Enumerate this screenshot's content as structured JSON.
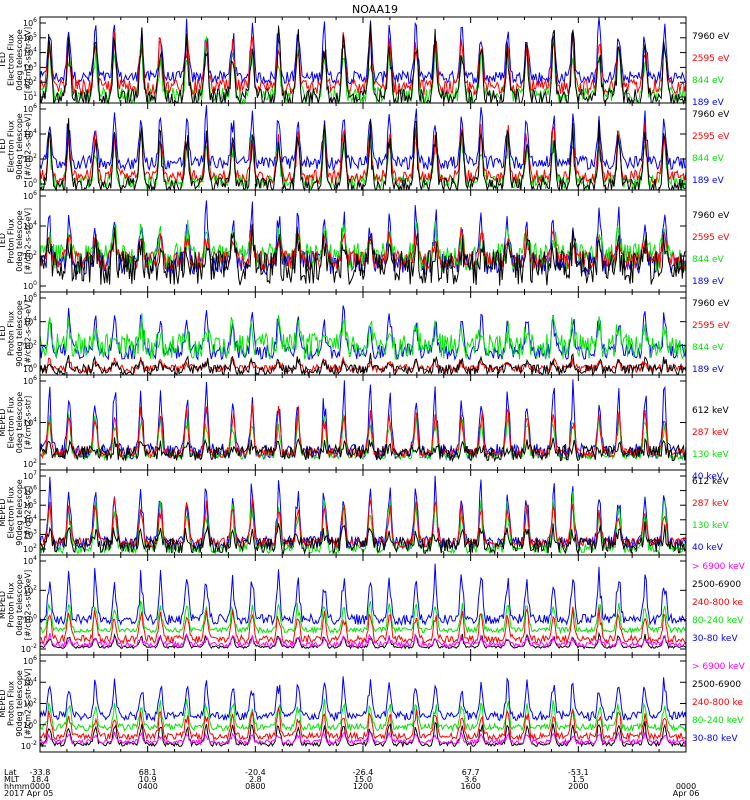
{
  "title": "NOAA19",
  "colors": {
    "black": "#000000",
    "blue": "#0000ff",
    "green": "#00e600",
    "red": "#ff0000",
    "magenta": "#ff00ff"
  },
  "chart_data": [
    {
      "type": "line",
      "panel": "ted-electron-0",
      "ylabel": [
        "TED",
        "Electron Flux",
        "0deg telescope",
        "[#/cm2-s-str-eV]"
      ],
      "yticks": [
        {
          "label": "10",
          "exp": "1"
        },
        {
          "label": "10",
          "exp": "2"
        },
        {
          "label": "10",
          "exp": "3"
        },
        {
          "label": "10",
          "exp": "4"
        },
        {
          "label": "10",
          "exp": "5"
        },
        {
          "label": "10",
          "exp": "6"
        }
      ],
      "ylim_log10": [
        0.6,
        6
      ],
      "grid": false,
      "legend": "right",
      "series": [
        {
          "name": "7960 eV",
          "color": "black",
          "baseline": 0.9,
          "peak": 5.5,
          "noise": 0.6
        },
        {
          "name": "2595 eV",
          "color": "red",
          "baseline": 1.6,
          "peak": 5.0,
          "noise": 0.5
        },
        {
          "name": "844 eV",
          "color": "green",
          "baseline": 1.1,
          "peak": 4.6,
          "noise": 0.5
        },
        {
          "name": "189 eV",
          "color": "blue",
          "baseline": 2.2,
          "peak": 5.9,
          "noise": 0.4
        }
      ]
    },
    {
      "type": "line",
      "panel": "ted-electron-90",
      "ylabel": [
        "TED",
        "Electron Flux",
        "90deg telescope",
        "[#/cm2-s-str-eV]"
      ],
      "yticks": [
        {
          "label": "10",
          "exp": "0"
        },
        {
          "label": "10",
          "exp": "2"
        },
        {
          "label": "10",
          "exp": "4"
        },
        {
          "label": "10",
          "exp": "6"
        }
      ],
      "ylim_log10": [
        -0.2,
        6.2
      ],
      "grid": false,
      "legend": "right",
      "series": [
        {
          "name": "7960 eV",
          "color": "black",
          "baseline": 0.1,
          "peak": 4.9,
          "noise": 0.6
        },
        {
          "name": "2595 eV",
          "color": "red",
          "baseline": 0.8,
          "peak": 4.6,
          "noise": 0.5
        },
        {
          "name": "844 eV",
          "color": "green",
          "baseline": 0.4,
          "peak": 4.2,
          "noise": 0.5
        },
        {
          "name": "189 eV",
          "color": "blue",
          "baseline": 1.8,
          "peak": 5.8,
          "noise": 0.5
        }
      ]
    },
    {
      "type": "line",
      "panel": "ted-proton-0",
      "ylabel": [
        "TED",
        "Proton Flux",
        "0deg telescope",
        "[#/cm2-s-str-eV]"
      ],
      "yticks": [
        {
          "label": "10",
          "exp": "0"
        },
        {
          "label": "10",
          "exp": "2"
        },
        {
          "label": "10",
          "exp": "4"
        },
        {
          "label": "10",
          "exp": "6"
        }
      ],
      "ylim_log10": [
        -0.2,
        6.2
      ],
      "grid": false,
      "legend": "right",
      "series": [
        {
          "name": "7960 eV",
          "color": "black",
          "baseline": 1.3,
          "peak": 3.5,
          "noise": 1.1
        },
        {
          "name": "2595 eV",
          "color": "red",
          "baseline": 1.8,
          "peak": 3.7,
          "noise": 0.6
        },
        {
          "name": "844 eV",
          "color": "green",
          "baseline": 2.0,
          "peak": 4.0,
          "noise": 0.9
        },
        {
          "name": "189 eV",
          "color": "blue",
          "baseline": 1.6,
          "peak": 5.2,
          "noise": 0.7
        }
      ]
    },
    {
      "type": "line",
      "panel": "ted-proton-90",
      "ylabel": [
        "TED",
        "Proton Flux",
        "90deg telescope",
        "[#/cm2-s-str-eV]"
      ],
      "yticks": [
        {
          "label": "10",
          "exp": "0"
        },
        {
          "label": "10",
          "exp": "2"
        },
        {
          "label": "10",
          "exp": "4"
        },
        {
          "label": "10",
          "exp": "6"
        }
      ],
      "ylim_log10": [
        -0.2,
        6.2
      ],
      "grid": false,
      "legend": "right",
      "series": [
        {
          "name": "7960 eV",
          "color": "black",
          "baseline": 0.2,
          "peak": 1.2,
          "noise": 0.4
        },
        {
          "name": "2595 eV",
          "color": "red",
          "baseline": 0.3,
          "peak": 1.0,
          "noise": 0.3
        },
        {
          "name": "844 eV",
          "color": "green",
          "baseline": 2.0,
          "peak": 3.9,
          "noise": 1.0
        },
        {
          "name": "189 eV",
          "color": "blue",
          "baseline": 1.6,
          "peak": 4.8,
          "noise": 0.6
        }
      ]
    },
    {
      "type": "line",
      "panel": "meped-electron-0",
      "ylabel": [
        "MEPED",
        "Electron Flux",
        "0deg telescope",
        "[#/cm2-s-str]"
      ],
      "yticks": [
        {
          "label": "10",
          "exp": "2"
        },
        {
          "label": "10",
          "exp": "4"
        },
        {
          "label": "10",
          "exp": "6"
        }
      ],
      "ylim_log10": [
        1.2,
        7.3
      ],
      "grid": false,
      "legend": "right",
      "series": [
        {
          "name": "612 keV",
          "color": "black",
          "baseline": 2.3,
          "peak": 2.9,
          "noise": 0.5
        },
        {
          "name": "287 keV",
          "color": "red",
          "baseline": 2.3,
          "peak": 5.5,
          "noise": 0.3
        },
        {
          "name": "130 keV",
          "color": "green",
          "baseline": 2.1,
          "peak": 5.0,
          "noise": 0.2
        },
        {
          "name": "40 keV",
          "color": "blue",
          "baseline": 2.4,
          "peak": 6.9,
          "noise": 0.5
        }
      ]
    },
    {
      "type": "line",
      "panel": "meped-electron-90",
      "ylabel": [
        "MEPED",
        "Electron Flux",
        "90deg telescope",
        "[#/cm2-s-str]"
      ],
      "yticks": [
        {
          "label": "10",
          "exp": "2"
        },
        {
          "label": "10",
          "exp": "3"
        },
        {
          "label": "10",
          "exp": "4"
        },
        {
          "label": "10",
          "exp": "5"
        },
        {
          "label": "10",
          "exp": "6"
        },
        {
          "label": "10",
          "exp": "7"
        }
      ],
      "ylim_log10": [
        1.8,
        7.2
      ],
      "grid": false,
      "legend": "right",
      "series": [
        {
          "name": "612 keV",
          "color": "black",
          "baseline": 2.4,
          "peak": 3.6,
          "noise": 0.5
        },
        {
          "name": "287 keV",
          "color": "red",
          "baseline": 2.6,
          "peak": 5.4,
          "noise": 0.3
        },
        {
          "name": "130 keV",
          "color": "green",
          "baseline": 2.2,
          "peak": 5.6,
          "noise": 0.3
        },
        {
          "name": "40 keV",
          "color": "blue",
          "baseline": 2.6,
          "peak": 6.7,
          "noise": 0.4
        }
      ]
    },
    {
      "type": "line",
      "panel": "meped-proton-0",
      "ylabel": [
        "MEPED",
        "Proton Flux",
        "0deg telescope",
        "[#/cm2-s-str-keV]"
      ],
      "yticks": [
        {
          "label": "10",
          "exp": "-2"
        },
        {
          "label": "10",
          "exp": "0"
        },
        {
          "label": "10",
          "exp": "2"
        },
        {
          "label": "10",
          "exp": "4"
        }
      ],
      "ylim_log10": [
        -2.4,
        5.2
      ],
      "grid": false,
      "legend": "right",
      "series": [
        {
          "name": "> 6900 keV",
          "color": "magenta",
          "baseline": -1.6,
          "peak": -0.9,
          "noise": 0.2
        },
        {
          "name": "2500-6900",
          "color": "black",
          "baseline": -1.8,
          "peak": -0.8,
          "noise": 0.1
        },
        {
          "name": "240-800 ke",
          "color": "red",
          "baseline": -1.2,
          "peak": 1.3,
          "noise": 0.3
        },
        {
          "name": "80-240 keV",
          "color": "green",
          "baseline": -0.5,
          "peak": 1.9,
          "noise": 0.2
        },
        {
          "name": "30-80 keV",
          "color": "blue",
          "baseline": 0.3,
          "peak": 4.2,
          "noise": 0.4
        }
      ]
    },
    {
      "type": "line",
      "panel": "meped-proton-90",
      "ylabel": [
        "MEPED",
        "Proton Flux",
        "90deg telescope",
        "[#/cm2-s-str-keV]"
      ],
      "yticks": [
        {
          "label": "10",
          "exp": "-2"
        },
        {
          "label": "10",
          "exp": "0"
        },
        {
          "label": "10",
          "exp": "2"
        },
        {
          "label": "10",
          "exp": "4"
        },
        {
          "label": "10",
          "exp": "6"
        }
      ],
      "ylim_log10": [
        -2.4,
        6.2
      ],
      "grid": false,
      "legend": "right",
      "series": [
        {
          "name": "> 6900 keV",
          "color": "magenta",
          "baseline": -1.5,
          "peak": -0.7,
          "noise": 0.2
        },
        {
          "name": "2500-6900",
          "color": "black",
          "baseline": -1.7,
          "peak": 0.3,
          "noise": 0.2
        },
        {
          "name": "240-800 ke",
          "color": "red",
          "baseline": -1.0,
          "peak": 1.5,
          "noise": 0.3
        },
        {
          "name": "80-240 keV",
          "color": "green",
          "baseline": -0.2,
          "peak": 2.3,
          "noise": 0.3
        },
        {
          "name": "30-80 keV",
          "color": "blue",
          "baseline": 0.8,
          "peak": 4.4,
          "noise": 0.4
        }
      ]
    }
  ],
  "xaxis": {
    "row_labels": [
      "Lat",
      "MLT",
      "hhmm",
      "2017"
    ],
    "ticks": [
      {
        "lat": "-33.8",
        "mlt": "18.4",
        "hhmm": "0000",
        "date": "Apr 05"
      },
      {
        "lat": "68.1",
        "mlt": "10.9",
        "hhmm": "0400",
        "date": ""
      },
      {
        "lat": "-20.4",
        "mlt": "2.8",
        "hhmm": "0800",
        "date": ""
      },
      {
        "lat": "-26.4",
        "mlt": "15.0",
        "hhmm": "1200",
        "date": ""
      },
      {
        "lat": "67.7",
        "mlt": "3.6",
        "hhmm": "1600",
        "date": ""
      },
      {
        "lat": "-53.1",
        "mlt": "1.5",
        "hhmm": "2000",
        "date": ""
      },
      {
        "lat": "",
        "mlt": "",
        "hhmm": "0000",
        "date": "Apr 06"
      }
    ]
  }
}
